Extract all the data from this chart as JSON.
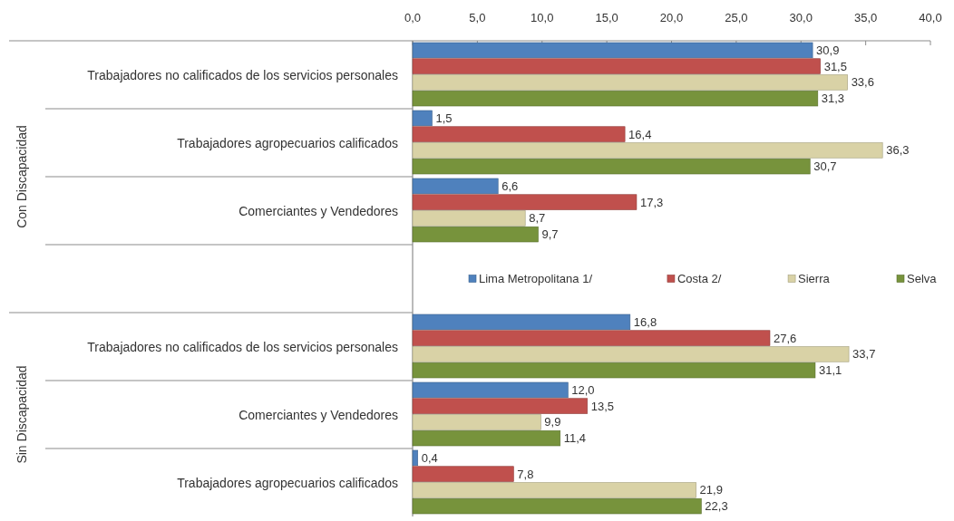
{
  "chart_data": {
    "type": "bar",
    "orientation": "horizontal",
    "categories": [
      "Trabajadores no calificados de los servicios personales",
      "Trabajadores agropecuarios calificados",
      "Comerciantes y Vendedores",
      null,
      "Trabajadores no calificados de los servicios personales",
      "Comerciantes y Vendedores",
      "Trabajadores agropecuarios calificados"
    ],
    "series": [
      {
        "name": "Lima Metropolitana 1/",
        "color": "#4f81bd",
        "values": [
          30.9,
          1.5,
          6.6,
          null,
          16.8,
          12.0,
          0.4
        ],
        "value_labels": [
          "30,9",
          "1,5",
          "6,6",
          null,
          "16,8",
          "12,0",
          "0,4"
        ]
      },
      {
        "name": "Costa 2/",
        "color": "#c0504d",
        "values": [
          31.5,
          16.4,
          17.3,
          null,
          27.6,
          13.5,
          7.8
        ],
        "value_labels": [
          "31,5",
          "16,4",
          "17,3",
          null,
          "27,6",
          "13,5",
          "7,8"
        ]
      },
      {
        "name": "Sierra",
        "color": "#d9d2a6",
        "values": [
          33.6,
          36.3,
          8.7,
          null,
          33.7,
          9.9,
          21.9
        ],
        "value_labels": [
          "33,6",
          "36,3",
          "8,7",
          null,
          "33,7",
          "9,9",
          "21,9"
        ]
      },
      {
        "name": "Selva",
        "color": "#77933c",
        "values": [
          31.3,
          30.7,
          9.7,
          null,
          31.1,
          11.4,
          22.3
        ],
        "value_labels": [
          "31,3",
          "30,7",
          "9,7",
          null,
          "31,1",
          "11,4",
          "22,3"
        ]
      }
    ],
    "xlim": [
      0,
      40
    ],
    "xticks": [
      {
        "value": 0,
        "label": "0,0"
      },
      {
        "value": 5,
        "label": "5,0"
      },
      {
        "value": 10,
        "label": "10,0"
      },
      {
        "value": 15,
        "label": "15,0"
      },
      {
        "value": 20,
        "label": "20,0"
      },
      {
        "value": 25,
        "label": "25,0"
      },
      {
        "value": 30,
        "label": "30,0"
      },
      {
        "value": 35,
        "label": "35,0"
      },
      {
        "value": 40,
        "label": "40,0"
      }
    ],
    "annotations": [
      "Con Discapacidad",
      "Sin Discapacidad"
    ],
    "legend": "center"
  }
}
